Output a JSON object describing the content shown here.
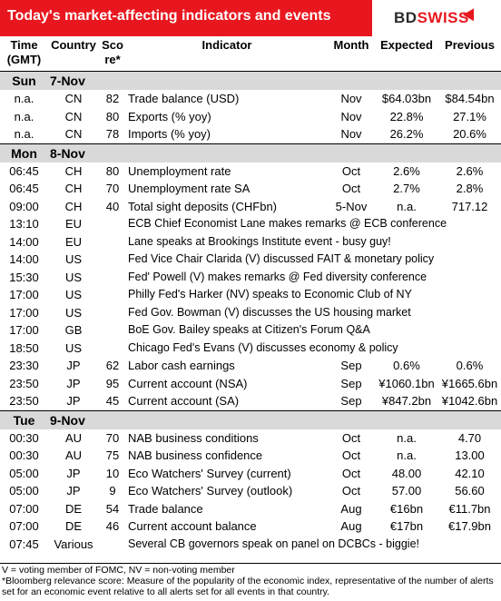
{
  "header": {
    "title": "Today's market-affecting indicators and events",
    "logo_bd": "BD",
    "logo_swiss": "SWISS"
  },
  "columns": {
    "time": "Time (GMT)",
    "country": "Country",
    "score": "Score*",
    "indicator": "Indicator",
    "month": "Month",
    "expected": "Expected",
    "previous": "Previous"
  },
  "days": [
    {
      "day": "Sun",
      "date": "7-Nov",
      "rows": [
        {
          "time": "n.a.",
          "country": "CN",
          "score": "82",
          "indicator": "Trade balance (USD)",
          "month": "Nov",
          "expected": "$64.03bn",
          "previous": "$84.54bn"
        },
        {
          "time": "n.a.",
          "country": "CN",
          "score": "80",
          "indicator": "Exports (% yoy)",
          "month": "Nov",
          "expected": "22.8%",
          "previous": "27.1%"
        },
        {
          "time": "n.a.",
          "country": "CN",
          "score": "78",
          "indicator": "Imports (% yoy)",
          "month": "Nov",
          "expected": "26.2%",
          "previous": "20.6%"
        }
      ]
    },
    {
      "day": "Mon",
      "date": "8-Nov",
      "rows": [
        {
          "time": "06:45",
          "country": "CH",
          "score": "80",
          "indicator": "Unemployment rate",
          "month": "Oct",
          "expected": "2.6%",
          "previous": "2.6%"
        },
        {
          "time": "06:45",
          "country": "CH",
          "score": "70",
          "indicator": "Unemployment rate SA",
          "month": "Oct",
          "expected": "2.7%",
          "previous": "2.8%"
        },
        {
          "time": "09:00",
          "country": "CH",
          "score": "40",
          "indicator": "Total sight deposits (CHFbn)",
          "month": "5-Nov",
          "expected": "n.a.",
          "previous": "717.12"
        },
        {
          "time": "13:10",
          "country": "EU",
          "score": "",
          "indicator": "ECB Chief Economist Lane makes remarks @ ECB conference",
          "month": "",
          "expected": "",
          "previous": "",
          "event": true
        },
        {
          "time": "14:00",
          "country": "EU",
          "score": "",
          "indicator": "Lane speaks at Brookings Institute event - busy guy!",
          "month": "",
          "expected": "",
          "previous": "",
          "event": true
        },
        {
          "time": "14:00",
          "country": "US",
          "score": "",
          "indicator": "Fed Vice Chair Clarida (V) discussed FAIT & monetary policy",
          "month": "",
          "expected": "",
          "previous": "",
          "event": true
        },
        {
          "time": "15:30",
          "country": "US",
          "score": "",
          "indicator": "Fed' Powell (V) makes remarks @ Fed diversity conference",
          "month": "",
          "expected": "",
          "previous": "",
          "event": true
        },
        {
          "time": "17:00",
          "country": "US",
          "score": "",
          "indicator": "Philly Fed's Harker (NV) speaks to Economic Club of NY",
          "month": "",
          "expected": "",
          "previous": "",
          "event": true
        },
        {
          "time": "17:00",
          "country": "US",
          "score": "",
          "indicator": "Fed Gov. Bowman (V) discusses the US housing market",
          "month": "",
          "expected": "",
          "previous": "",
          "event": true
        },
        {
          "time": "17:00",
          "country": "GB",
          "score": "",
          "indicator": "BoE Gov. Bailey speaks at Citizen's Forum Q&A",
          "month": "",
          "expected": "",
          "previous": "",
          "event": true
        },
        {
          "time": "18:50",
          "country": "US",
          "score": "",
          "indicator": "Chicago Fed's Evans (V) discusses economy & policy",
          "month": "",
          "expected": "",
          "previous": "",
          "event": true
        },
        {
          "time": "23:30",
          "country": "JP",
          "score": "62",
          "indicator": "Labor cash earnings",
          "month": "Sep",
          "expected": "0.6%",
          "previous": "0.6%"
        },
        {
          "time": "23:50",
          "country": "JP",
          "score": "95",
          "indicator": "Current account  (NSA)",
          "month": "Sep",
          "expected": "¥1060.1bn",
          "previous": "¥1665.6bn"
        },
        {
          "time": "23:50",
          "country": "JP",
          "score": "45",
          "indicator": "Current account (SA)",
          "month": "Sep",
          "expected": "¥847.2bn",
          "previous": "¥1042.6bn"
        }
      ]
    },
    {
      "day": "Tue",
      "date": "9-Nov",
      "rows": [
        {
          "time": "00:30",
          "country": "AU",
          "score": "70",
          "indicator": "NAB business conditions",
          "month": "Oct",
          "expected": "n.a.",
          "previous": "4.70"
        },
        {
          "time": "00:30",
          "country": "AU",
          "score": "75",
          "indicator": "NAB business confidence",
          "month": "Oct",
          "expected": "n.a.",
          "previous": "13.00"
        },
        {
          "time": "05:00",
          "country": "JP",
          "score": "10",
          "indicator": "Eco Watchers' Survey (current)",
          "month": "Oct",
          "expected": "48.00",
          "previous": "42.10"
        },
        {
          "time": "05:00",
          "country": "JP",
          "score": "9",
          "indicator": "Eco Watchers' Survey (outlook)",
          "month": "Oct",
          "expected": "57.00",
          "previous": "56.60"
        },
        {
          "time": "07:00",
          "country": "DE",
          "score": "54",
          "indicator": "Trade balance",
          "month": "Aug",
          "expected": "€16bn",
          "previous": "€11.7bn"
        },
        {
          "time": "07:00",
          "country": "DE",
          "score": "46",
          "indicator": "Current account balance",
          "month": "Aug",
          "expected": "€17bn",
          "previous": "€17.9bn"
        },
        {
          "time": "07:45",
          "country": "Various",
          "score": "",
          "indicator": "Several CB governors speak on panel on DCBCs - biggie!",
          "month": "",
          "expected": "",
          "previous": "",
          "event": true
        }
      ]
    }
  ],
  "footer": {
    "line1": "V = voting member of FOMC, NV = non-voting member",
    "line2": "*Bloomberg relevance score:  Measure of the popularity of the economic index, representative of the number of alerts set for an economic event relative to all alerts set for all events in that country."
  }
}
